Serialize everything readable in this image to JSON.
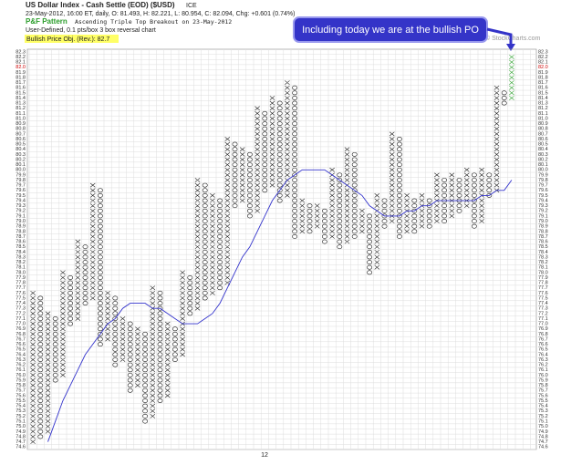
{
  "chart_data": {
    "type": "pnf",
    "title": "US Dollar Index - Cash Settle (EOD) ($USD)",
    "exchange": "ICE",
    "quote": "23-May-2012, 16:00 ET, daily, O: 81.493, H: 82.221, L: 80.954, C: 82.094, Chg: +0.601 (0.74%)",
    "pattern_label": "P&F Pattern",
    "pattern": "Ascending Triple Top Breakout on 23-May-2012",
    "settings": "User-Defined, 0.1 pts/box 3 box reversal chart",
    "objective": "Bullish Price Obj. (Rev.): 82.7",
    "callout": "Including today we are at the bullish PO",
    "watermark": "© StockCharts.com",
    "x_note": "12",
    "box_size": 0.1,
    "current_price": 82.0,
    "x_color": "#222222",
    "o_color": "#222222",
    "last_color": "#2ca02c",
    "ma_color": "#3333cc",
    "current_color": "#cc0000",
    "ylim": [
      74.55,
      82.35
    ],
    "yticks": [
      74.6,
      74.7,
      74.8,
      74.9,
      {
        "value": 75,
        "label": "75.0"
      },
      75.1,
      75.2,
      75.3,
      75.4,
      75.5,
      75.6,
      75.7,
      75.8,
      75.9,
      {
        "value": 76,
        "label": "76.0"
      },
      76.1,
      76.2,
      76.3,
      76.4,
      76.5,
      76.6,
      76.7,
      76.8,
      76.9,
      {
        "value": 77,
        "label": "77.0"
      },
      77.1,
      77.2,
      77.3,
      77.4,
      77.5,
      77.6,
      77.7,
      77.8,
      77.9,
      {
        "value": 78,
        "label": "78.0"
      },
      78.1,
      78.2,
      78.3,
      78.4,
      78.5,
      78.6,
      78.7,
      78.8,
      78.9,
      {
        "value": 79,
        "label": "79.0"
      },
      79.1,
      79.2,
      79.3,
      79.4,
      79.5,
      79.6,
      79.7,
      79.8,
      79.9,
      {
        "value": 80,
        "label": "80.0"
      },
      80.1,
      80.2,
      80.3,
      80.4,
      80.5,
      80.6,
      80.7,
      80.8,
      80.9,
      {
        "value": 81,
        "label": "81.0"
      },
      81.1,
      81.2,
      81.3,
      81.4,
      81.5,
      81.6,
      81.7,
      81.8,
      81.9,
      {
        "value": 82,
        "label": "82.0"
      },
      82.1,
      82.2,
      82.3
    ],
    "grid": true,
    "columns": [
      {
        "type": "X",
        "low": 74.7,
        "high": 77.6
      },
      {
        "type": "O",
        "low": 74.8,
        "high": 77.5
      },
      {
        "type": "X",
        "low": 74.9,
        "high": 77.2
      },
      {
        "type": "O",
        "low": 75.9,
        "high": 77.1
      },
      {
        "type": "X",
        "low": 76.0,
        "high": 78.0
      },
      {
        "type": "O",
        "low": 77.0,
        "high": 77.9
      },
      {
        "type": "X",
        "low": 77.1,
        "high": 78.6
      },
      {
        "type": "O",
        "low": 77.4,
        "high": 78.5
      },
      {
        "type": "X",
        "low": 77.5,
        "high": 79.7
      },
      {
        "type": "O",
        "low": 76.6,
        "high": 79.6
      },
      {
        "type": "X",
        "low": 76.7,
        "high": 77.6
      },
      {
        "type": "O",
        "low": 76.2,
        "high": 77.5
      },
      {
        "type": "X",
        "low": 76.3,
        "high": 77.1
      },
      {
        "type": "O",
        "low": 75.7,
        "high": 77.0
      },
      {
        "type": "X",
        "low": 75.8,
        "high": 76.9
      },
      {
        "type": "O",
        "low": 75.1,
        "high": 76.8
      },
      {
        "type": "X",
        "low": 75.2,
        "high": 77.7
      },
      {
        "type": "O",
        "low": 75.5,
        "high": 77.6
      },
      {
        "type": "X",
        "low": 75.6,
        "high": 77.0
      },
      {
        "type": "O",
        "low": 76.3,
        "high": 76.9
      },
      {
        "type": "X",
        "low": 76.4,
        "high": 78.0
      },
      {
        "type": "O",
        "low": 77.2,
        "high": 77.9
      },
      {
        "type": "X",
        "low": 77.3,
        "high": 79.8
      },
      {
        "type": "O",
        "low": 77.5,
        "high": 79.7
      },
      {
        "type": "X",
        "low": 77.6,
        "high": 79.5
      },
      {
        "type": "O",
        "low": 77.7,
        "high": 79.4
      },
      {
        "type": "X",
        "low": 77.8,
        "high": 80.6
      },
      {
        "type": "O",
        "low": 79.3,
        "high": 80.5
      },
      {
        "type": "X",
        "low": 79.4,
        "high": 80.4
      },
      {
        "type": "O",
        "low": 79.1,
        "high": 80.3
      },
      {
        "type": "X",
        "low": 79.2,
        "high": 81.2
      },
      {
        "type": "O",
        "low": 79.6,
        "high": 81.1
      },
      {
        "type": "X",
        "low": 79.7,
        "high": 81.4
      },
      {
        "type": "O",
        "low": 79.4,
        "high": 81.3
      },
      {
        "type": "X",
        "low": 79.5,
        "high": 81.7
      },
      {
        "type": "O",
        "low": 78.7,
        "high": 81.6
      },
      {
        "type": "X",
        "low": 78.8,
        "high": 79.4
      },
      {
        "type": "O",
        "low": 78.8,
        "high": 79.3
      },
      {
        "type": "X",
        "low": 78.9,
        "high": 79.3
      },
      {
        "type": "O",
        "low": 78.6,
        "high": 79.2
      },
      {
        "type": "X",
        "low": 78.7,
        "high": 80.0
      },
      {
        "type": "O",
        "low": 78.5,
        "high": 79.9
      },
      {
        "type": "X",
        "low": 78.6,
        "high": 80.4
      },
      {
        "type": "O",
        "low": 78.7,
        "high": 80.3
      },
      {
        "type": "X",
        "low": 78.8,
        "high": 79.2
      },
      {
        "type": "O",
        "low": 78.0,
        "high": 79.1
      },
      {
        "type": "X",
        "low": 78.1,
        "high": 79.5
      },
      {
        "type": "O",
        "low": 78.9,
        "high": 79.4
      },
      {
        "type": "X",
        "low": 79.0,
        "high": 80.7
      },
      {
        "type": "O",
        "low": 78.7,
        "high": 80.6
      },
      {
        "type": "X",
        "low": 78.8,
        "high": 79.5
      },
      {
        "type": "O",
        "low": 78.8,
        "high": 79.4
      },
      {
        "type": "X",
        "low": 78.9,
        "high": 79.5
      },
      {
        "type": "O",
        "low": 78.9,
        "high": 79.4
      },
      {
        "type": "X",
        "low": 79.0,
        "high": 79.9
      },
      {
        "type": "O",
        "low": 79.0,
        "high": 79.8
      },
      {
        "type": "X",
        "low": 79.1,
        "high": 79.9
      },
      {
        "type": "O",
        "low": 79.2,
        "high": 79.8
      },
      {
        "type": "X",
        "low": 79.3,
        "high": 80.0
      },
      {
        "type": "O",
        "low": 78.9,
        "high": 79.9
      },
      {
        "type": "X",
        "low": 79.0,
        "high": 80.0
      },
      {
        "type": "O",
        "low": 79.5,
        "high": 79.9
      },
      {
        "type": "X",
        "low": 79.6,
        "high": 81.6
      },
      {
        "type": "O",
        "low": 81.3,
        "high": 81.5
      },
      {
        "type": "X",
        "low": 81.4,
        "high": 82.2
      }
    ],
    "moving_average": [
      null,
      null,
      74.7,
      75.1,
      75.5,
      75.8,
      76.1,
      76.4,
      76.6,
      76.8,
      77.0,
      77.1,
      77.3,
      77.4,
      77.4,
      77.4,
      77.3,
      77.3,
      77.2,
      77.1,
      77.0,
      77.0,
      77.0,
      77.1,
      77.2,
      77.4,
      77.7,
      78.0,
      78.3,
      78.5,
      78.8,
      79.1,
      79.4,
      79.6,
      79.8,
      79.9,
      80.0,
      80.0,
      80.0,
      80.0,
      79.9,
      79.8,
      79.7,
      79.6,
      79.5,
      79.3,
      79.2,
      79.1,
      79.1,
      79.1,
      79.2,
      79.2,
      79.3,
      79.3,
      79.4,
      79.4,
      79.4,
      79.4,
      79.4,
      79.4,
      79.5,
      79.5,
      79.6,
      79.6,
      79.8
    ]
  }
}
